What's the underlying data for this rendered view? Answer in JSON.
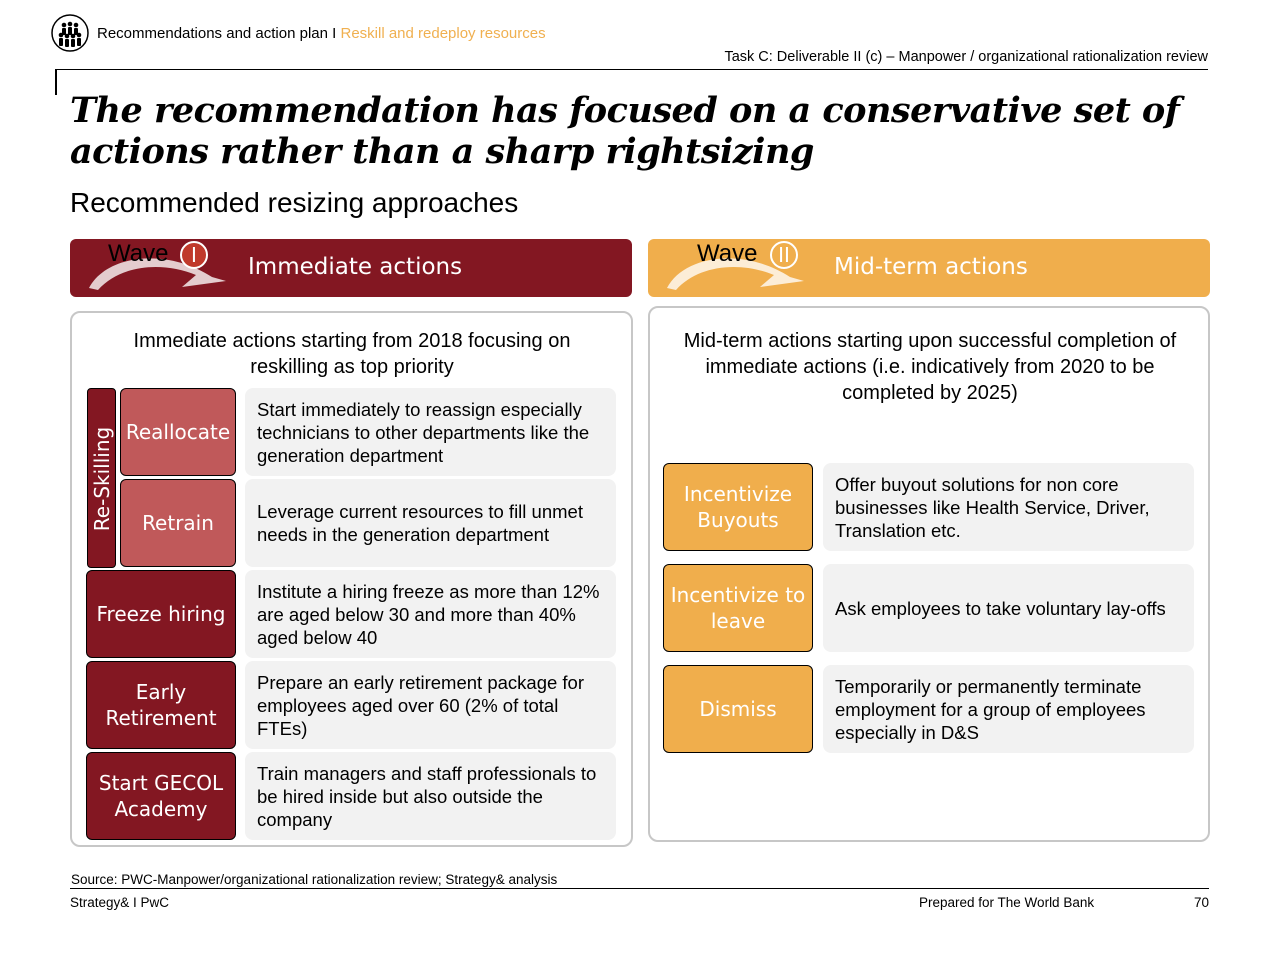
{
  "header": {
    "breadcrumb_main": "Recommendations and action plan I",
    "breadcrumb_accent": "Reskill and redeploy resources",
    "task": "Task C: Deliverable II (c) – Manpower / organizational rationalization review"
  },
  "title": "The recommendation has focused on a conservative set of actions rather than a sharp rightsizing",
  "subtitle": "Recommended resizing approaches",
  "wave1": {
    "word": "Wave",
    "numeral": "I",
    "heading": "Immediate actions",
    "intro": "Immediate actions starting from 2018 focusing on reskilling as top priority",
    "group_label": "Re-Skilling",
    "items": [
      {
        "action": "Reallocate",
        "description": "Start immediately to reassign especially technicians to other departments like the generation department"
      },
      {
        "action": "Retrain",
        "description": "Leverage current resources to fill unmet needs in the generation department"
      },
      {
        "action": "Freeze hiring",
        "description": "Institute a hiring freeze as more than 12% are aged below 30 and more than 40% aged below 40"
      },
      {
        "action": "Early Retirement",
        "description": "Prepare an early retirement package for employees aged over 60 (2% of total FTEs)"
      },
      {
        "action": "Start GECOL Academy",
        "description": "Train managers and staff professionals to be hired inside but also outside the company"
      }
    ]
  },
  "wave2": {
    "word": "Wave",
    "numeral": "II",
    "heading": "Mid-term actions",
    "intro": "Mid-term actions starting upon successful completion of immediate actions (i.e. indicatively from 2020 to be completed by  2025)",
    "items": [
      {
        "action": "Incentivize Buyouts",
        "description": "Offer buyout solutions for non core businesses like Health Service, Driver, Translation etc."
      },
      {
        "action": "Incentivize to leave",
        "description": "Ask employees to take voluntary lay-offs"
      },
      {
        "action": "Dismiss",
        "description": "Temporarily or permanently terminate employment for a group of employees especially in D&S"
      }
    ]
  },
  "footer": {
    "source": "Source: PWC-Manpower/organizational rationalization review; Strategy& analysis",
    "left": "Strategy& I PwC",
    "right": "Prepared for The World Bank",
    "page": "70"
  },
  "colors": {
    "wave1": "#831722",
    "wave1_light": "#c0595a",
    "wave2": "#f0ae4c",
    "description_bg": "#f2f2f2"
  },
  "icons": {
    "logo": "people-group-icon",
    "wave_arrow": "curved-arrow-icon"
  }
}
